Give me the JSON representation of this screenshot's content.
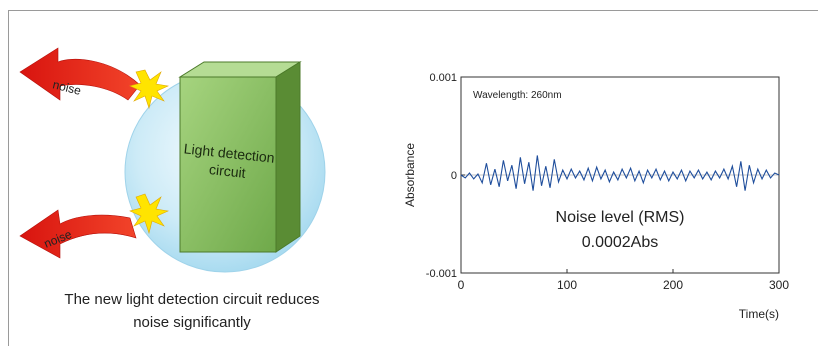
{
  "illustration": {
    "box_label_line1": "Light detection",
    "box_label_line2": "circuit",
    "noise_label_top": "noise",
    "noise_label_bottom": "noise",
    "caption_line1": "The new light detection circuit reduces",
    "caption_line2": "noise significantly",
    "colors": {
      "sphere": "#bfe6f5",
      "box_front": "#8dc16a",
      "box_side": "#55862f",
      "box_top": "#a4d183",
      "arrow": "#e8241b",
      "flash": "#ffe400"
    }
  },
  "chart_data": {
    "type": "line",
    "annotation": "Wavelength: 260nm",
    "center_text_line1": "Noise level (RMS)",
    "center_text_line2": "0.0002Abs",
    "xlabel": "Time(s)",
    "ylabel": "Absorbance",
    "xlim": [
      0,
      300
    ],
    "ylim": [
      -0.001,
      0.001
    ],
    "x_ticks": [
      0,
      100,
      200,
      300
    ],
    "x_tick_labels": [
      "0",
      "100",
      "200",
      "300"
    ],
    "y_ticks": [
      -0.001,
      0,
      0.001
    ],
    "y_tick_labels": [
      "-0.001",
      "0",
      "0.001"
    ],
    "grid": false,
    "series": [
      {
        "color": "#1f4e9c",
        "x": [
          0,
          4,
          8,
          12,
          16,
          20,
          24,
          28,
          32,
          36,
          40,
          44,
          48,
          52,
          56,
          60,
          64,
          68,
          72,
          76,
          80,
          84,
          88,
          92,
          96,
          100,
          104,
          108,
          112,
          116,
          120,
          124,
          128,
          132,
          136,
          140,
          144,
          148,
          152,
          156,
          160,
          164,
          168,
          172,
          176,
          180,
          184,
          188,
          192,
          196,
          200,
          204,
          208,
          212,
          216,
          220,
          224,
          228,
          232,
          236,
          240,
          244,
          248,
          252,
          256,
          260,
          264,
          268,
          272,
          276,
          280,
          284,
          288,
          292,
          296,
          300
        ],
        "values": [
          0.0,
          -3e-05,
          2e-05,
          -4e-05,
          1e-05,
          -8e-05,
          0.00012,
          -0.0001,
          6e-05,
          -0.00012,
          0.00015,
          -6e-05,
          0.0001,
          -0.00014,
          0.00018,
          -9e-05,
          0.00013,
          -0.00016,
          0.0002,
          -0.00011,
          9e-05,
          -0.00013,
          0.00016,
          -7e-05,
          5e-05,
          -4e-05,
          6e-05,
          -3e-05,
          4e-05,
          -5e-05,
          7e-05,
          -6e-05,
          8e-05,
          -4e-05,
          5e-05,
          -7e-05,
          3e-05,
          -5e-05,
          6e-05,
          -3e-05,
          7e-05,
          -6e-05,
          4e-05,
          -8e-05,
          5e-05,
          -3e-05,
          6e-05,
          -5e-05,
          4e-05,
          -6e-05,
          3e-05,
          -4e-05,
          5e-05,
          -6e-05,
          4e-05,
          -3e-05,
          5e-05,
          -4e-05,
          3e-05,
          -5e-05,
          4e-05,
          -3e-05,
          6e-05,
          -4e-05,
          9e-05,
          -0.00012,
          0.00014,
          -0.00016,
          0.0001,
          -8e-05,
          6e-05,
          -4e-05,
          5e-05,
          -3e-05,
          2e-05,
          0.0
        ]
      }
    ]
  }
}
